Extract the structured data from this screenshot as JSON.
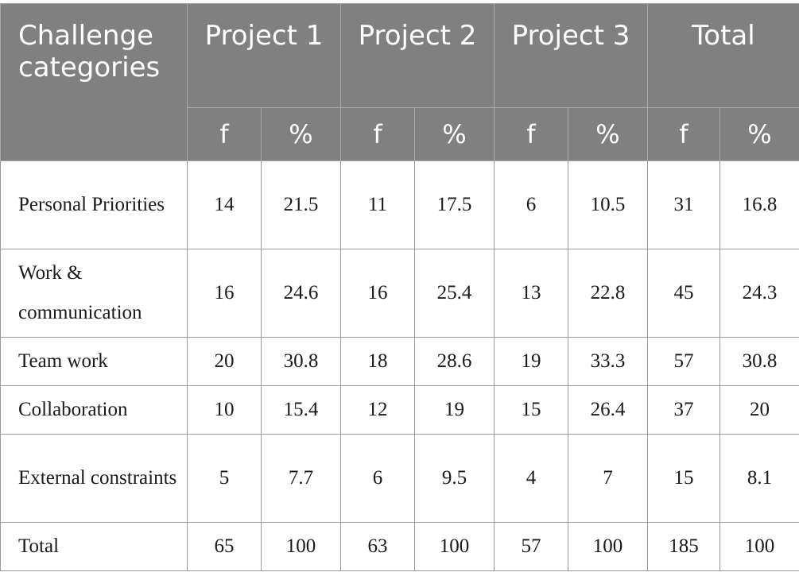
{
  "table": {
    "corner_header": "Challenge categories",
    "group_headers": [
      "Project 1",
      "Project 2",
      "Project 3",
      "Total"
    ],
    "sub_headers": [
      "f",
      "%",
      "f",
      "%",
      "f",
      "%",
      "f",
      "%"
    ],
    "rows": [
      {
        "label": "Personal Priorities",
        "cells": [
          "14",
          "21.5",
          "11",
          "17.5",
          "6",
          "10.5",
          "31",
          "16.8"
        ]
      },
      {
        "label": "Work & communication",
        "cells": [
          "16",
          "24.6",
          "16",
          "25.4",
          "13",
          "22.8",
          "45",
          "24.3"
        ]
      },
      {
        "label": "Team work",
        "cells": [
          "20",
          "30.8",
          "18",
          "28.6",
          "19",
          "33.3",
          "57",
          "30.8"
        ]
      },
      {
        "label": "Collaboration",
        "cells": [
          "10",
          "15.4",
          "12",
          "19",
          "15",
          "26.4",
          "37",
          "20"
        ]
      },
      {
        "label": "External constraints",
        "cells": [
          "5",
          "7.7",
          "6",
          "9.5",
          "4",
          "7",
          "15",
          "8.1"
        ]
      },
      {
        "label": "Total",
        "cells": [
          "65",
          "100",
          "63",
          "100",
          "57",
          "100",
          "185",
          "100"
        ]
      }
    ]
  }
}
